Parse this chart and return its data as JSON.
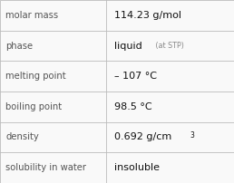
{
  "rows": [
    {
      "label": "molar mass",
      "value": "114.23 g/mol",
      "type": "plain"
    },
    {
      "label": "phase",
      "value": "liquid",
      "type": "suffix",
      "suffix": " (at STP)"
    },
    {
      "label": "melting point",
      "value": "– 107 °C",
      "type": "plain"
    },
    {
      "label": "boiling point",
      "value": "98.5 °C",
      "type": "plain"
    },
    {
      "label": "density",
      "value": "0.692 g/cm",
      "type": "sup",
      "sup": "3"
    },
    {
      "label": "solubility in water",
      "value": "insoluble",
      "type": "plain"
    }
  ],
  "bg_color": "#f9f9f9",
  "border_color": "#bbbbbb",
  "label_color": "#555555",
  "value_color": "#111111",
  "suffix_color": "#888888",
  "label_fontsize": 7.2,
  "value_fontsize": 8.0,
  "suffix_fontsize": 5.8,
  "sup_fontsize": 5.5,
  "col_split": 0.455,
  "fig_width": 2.58,
  "fig_height": 2.02,
  "dpi": 100
}
